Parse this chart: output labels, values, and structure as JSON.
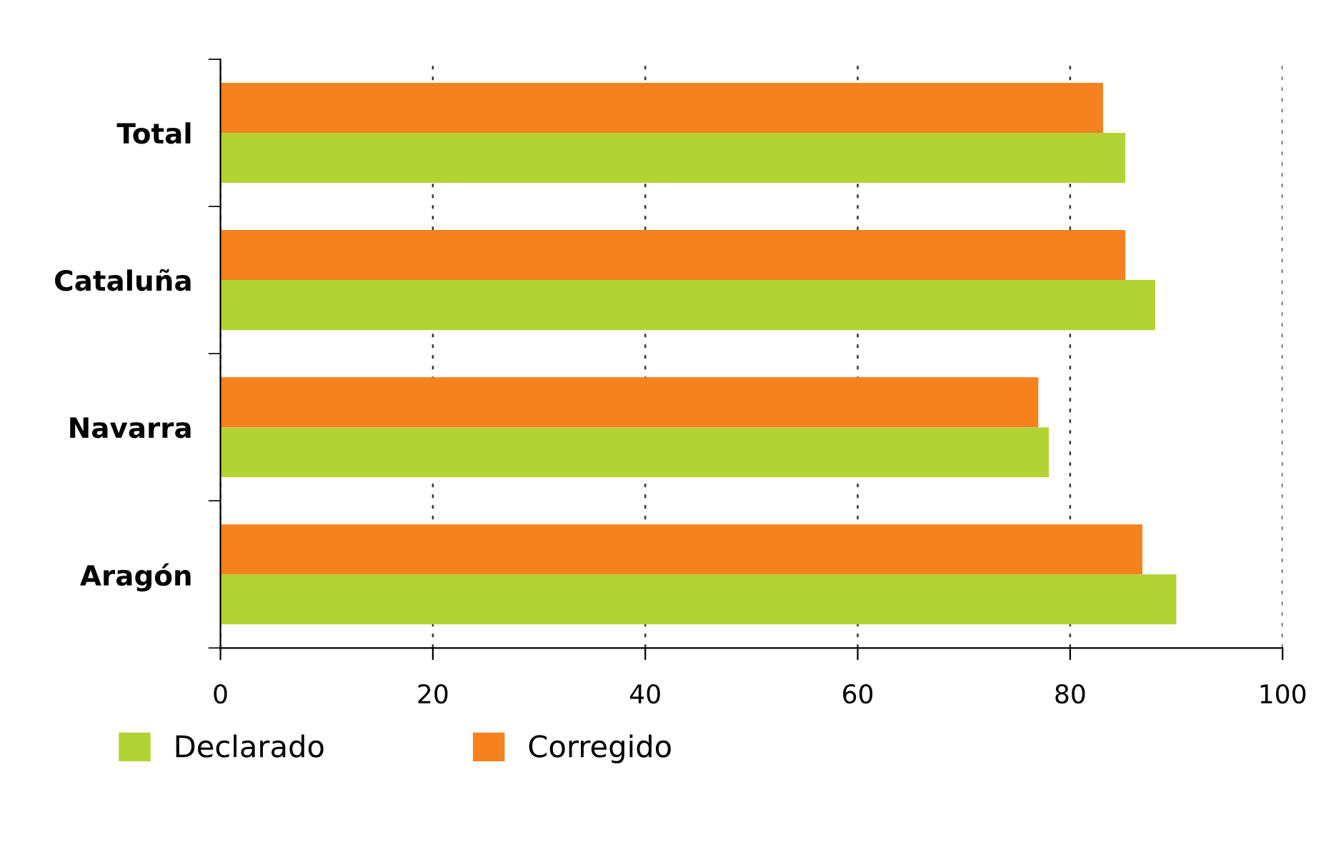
{
  "chart_data": {
    "type": "bar",
    "orientation": "horizontal",
    "categories": [
      "Total",
      "Cataluña",
      "Navarra",
      "Aragón"
    ],
    "series": [
      {
        "name": "Declarado",
        "color": "#b3d334",
        "values": [
          85.2,
          88.0,
          78.0,
          90.0
        ]
      },
      {
        "name": "Corregido",
        "color": "#f5821f",
        "values": [
          83.1,
          85.2,
          77.0,
          86.8
        ]
      }
    ],
    "xlim": [
      0,
      100
    ],
    "xticks": [
      0,
      20,
      40,
      60,
      80,
      100
    ],
    "grid": "x",
    "legend": "bottom left"
  }
}
